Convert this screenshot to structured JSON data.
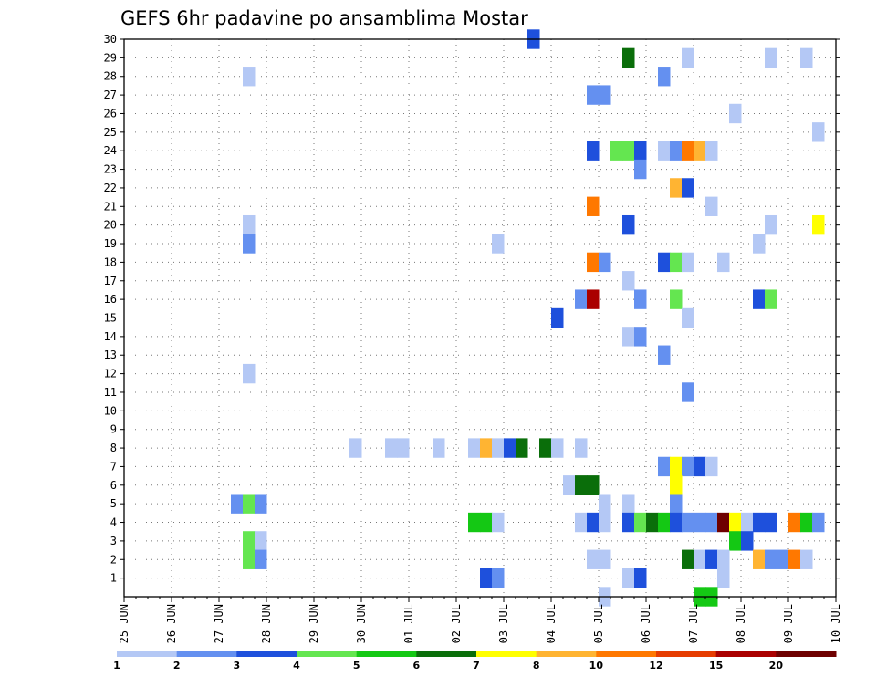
{
  "chart_data": {
    "type": "heatmap",
    "title": "GEFS 6hr padavine po ansamblima Mostar",
    "xlabel": "",
    "ylabel": "",
    "x_ticks": [
      "25 JUN",
      "26 JUN",
      "27 JUN",
      "28 JUN",
      "29 JUN",
      "30 JUN",
      "01 JUL",
      "02 JUL",
      "03 JUL",
      "04 JUL",
      "05 JUL",
      "06 JUL",
      "07 JUL",
      "08 JUL",
      "09 JUL",
      "10 JUL"
    ],
    "xlim_days": [
      0,
      15
    ],
    "y_ticks": [
      1,
      2,
      3,
      4,
      5,
      6,
      7,
      8,
      9,
      10,
      11,
      12,
      13,
      14,
      15,
      16,
      17,
      18,
      19,
      20,
      21,
      22,
      23,
      24,
      25,
      26,
      27,
      28,
      29,
      30
    ],
    "ylim": [
      0,
      30
    ],
    "grid": true,
    "colorbar": {
      "labels": [
        "1",
        "2",
        "3",
        "4",
        "5",
        "6",
        "7",
        "8",
        "10",
        "12",
        "15",
        "20"
      ],
      "colors": [
        "#b4c8f5",
        "#6490f0",
        "#1e50dc",
        "#64e650",
        "#14c814",
        "#0a6e0a",
        "#ffff00",
        "#ffb432",
        "#ff7800",
        "#e63c00",
        "#aa0000",
        "#6e0000"
      ]
    },
    "cell_width_days": 0.25,
    "cells": [
      {
        "day": 8.5,
        "member": 30,
        "level": 3
      },
      {
        "day": 10.5,
        "member": 29,
        "level": 6
      },
      {
        "day": 11.75,
        "member": 29,
        "level": 1
      },
      {
        "day": 13.5,
        "member": 29,
        "level": 1
      },
      {
        "day": 14.25,
        "member": 29,
        "level": 1
      },
      {
        "day": 2.5,
        "member": 28,
        "level": 1
      },
      {
        "day": 11.25,
        "member": 28,
        "level": 2
      },
      {
        "day": 9.75,
        "member": 27,
        "level": 2
      },
      {
        "day": 10.0,
        "member": 27,
        "level": 2
      },
      {
        "day": 12.75,
        "member": 26,
        "level": 1
      },
      {
        "day": 14.5,
        "member": 25,
        "level": 1
      },
      {
        "day": 9.75,
        "member": 24,
        "level": 3
      },
      {
        "day": 10.25,
        "member": 24,
        "level": 4
      },
      {
        "day": 10.5,
        "member": 24,
        "level": 4
      },
      {
        "day": 10.75,
        "member": 24,
        "level": 3
      },
      {
        "day": 11.25,
        "member": 24,
        "level": 1
      },
      {
        "day": 11.5,
        "member": 24,
        "level": 2
      },
      {
        "day": 11.75,
        "member": 24,
        "level": 9
      },
      {
        "day": 12.0,
        "member": 24,
        "level": 8
      },
      {
        "day": 12.25,
        "member": 24,
        "level": 1
      },
      {
        "day": 10.75,
        "member": 23,
        "level": 2
      },
      {
        "day": 11.5,
        "member": 22,
        "level": 8
      },
      {
        "day": 11.75,
        "member": 22,
        "level": 3
      },
      {
        "day": 9.75,
        "member": 21,
        "level": 9
      },
      {
        "day": 12.25,
        "member": 21,
        "level": 1
      },
      {
        "day": 2.5,
        "member": 20,
        "level": 1
      },
      {
        "day": 10.5,
        "member": 20,
        "level": 3
      },
      {
        "day": 13.5,
        "member": 20,
        "level": 1
      },
      {
        "day": 14.5,
        "member": 20,
        "level": 7
      },
      {
        "day": 2.5,
        "member": 19,
        "level": 2
      },
      {
        "day": 7.75,
        "member": 19,
        "level": 1
      },
      {
        "day": 13.25,
        "member": 19,
        "level": 1
      },
      {
        "day": 9.75,
        "member": 18,
        "level": 9
      },
      {
        "day": 10.0,
        "member": 18,
        "level": 2
      },
      {
        "day": 11.25,
        "member": 18,
        "level": 3
      },
      {
        "day": 11.5,
        "member": 18,
        "level": 4
      },
      {
        "day": 11.75,
        "member": 18,
        "level": 1
      },
      {
        "day": 12.5,
        "member": 18,
        "level": 1
      },
      {
        "day": 10.5,
        "member": 17,
        "level": 1
      },
      {
        "day": 9.5,
        "member": 16,
        "level": 2
      },
      {
        "day": 9.75,
        "member": 16,
        "level": 11
      },
      {
        "day": 10.75,
        "member": 16,
        "level": 2
      },
      {
        "day": 11.5,
        "member": 16,
        "level": 4
      },
      {
        "day": 13.25,
        "member": 16,
        "level": 3
      },
      {
        "day": 13.5,
        "member": 16,
        "level": 4
      },
      {
        "day": 9.0,
        "member": 15,
        "level": 3
      },
      {
        "day": 11.75,
        "member": 15,
        "level": 1
      },
      {
        "day": 10.5,
        "member": 14,
        "level": 1
      },
      {
        "day": 10.75,
        "member": 14,
        "level": 2
      },
      {
        "day": 11.25,
        "member": 13,
        "level": 2
      },
      {
        "day": 2.5,
        "member": 12,
        "level": 1
      },
      {
        "day": 11.75,
        "member": 11,
        "level": 2
      },
      {
        "day": 4.75,
        "member": 8,
        "level": 1
      },
      {
        "day": 5.5,
        "member": 8,
        "level": 1
      },
      {
        "day": 5.75,
        "member": 8,
        "level": 1
      },
      {
        "day": 6.5,
        "member": 8,
        "level": 1
      },
      {
        "day": 7.25,
        "member": 8,
        "level": 1
      },
      {
        "day": 7.5,
        "member": 8,
        "level": 8
      },
      {
        "day": 7.75,
        "member": 8,
        "level": 1
      },
      {
        "day": 8.0,
        "member": 8,
        "level": 3
      },
      {
        "day": 8.25,
        "member": 8,
        "level": 6
      },
      {
        "day": 8.75,
        "member": 8,
        "level": 6
      },
      {
        "day": 9.0,
        "member": 8,
        "level": 1
      },
      {
        "day": 9.5,
        "member": 8,
        "level": 1
      },
      {
        "day": 11.25,
        "member": 7,
        "level": 2
      },
      {
        "day": 11.5,
        "member": 7,
        "level": 7
      },
      {
        "day": 11.75,
        "member": 7,
        "level": 2
      },
      {
        "day": 12.0,
        "member": 7,
        "level": 3
      },
      {
        "day": 12.25,
        "member": 7,
        "level": 1
      },
      {
        "day": 9.25,
        "member": 6,
        "level": 1
      },
      {
        "day": 9.5,
        "member": 6,
        "level": 6
      },
      {
        "day": 9.75,
        "member": 6,
        "level": 6
      },
      {
        "day": 11.5,
        "member": 6,
        "level": 7
      },
      {
        "day": 2.25,
        "member": 5,
        "level": 2
      },
      {
        "day": 2.5,
        "member": 5,
        "level": 4
      },
      {
        "day": 2.75,
        "member": 5,
        "level": 2
      },
      {
        "day": 10.0,
        "member": 5,
        "level": 1
      },
      {
        "day": 10.5,
        "member": 5,
        "level": 1
      },
      {
        "day": 11.5,
        "member": 5,
        "level": 2
      },
      {
        "day": 7.25,
        "member": 4,
        "level": 5
      },
      {
        "day": 7.5,
        "member": 4,
        "level": 5
      },
      {
        "day": 7.75,
        "member": 4,
        "level": 1
      },
      {
        "day": 9.5,
        "member": 4,
        "level": 1
      },
      {
        "day": 9.75,
        "member": 4,
        "level": 3
      },
      {
        "day": 10.0,
        "member": 4,
        "level": 1
      },
      {
        "day": 10.5,
        "member": 4,
        "level": 3
      },
      {
        "day": 10.75,
        "member": 4,
        "level": 4
      },
      {
        "day": 11.0,
        "member": 4,
        "level": 6
      },
      {
        "day": 11.25,
        "member": 4,
        "level": 5
      },
      {
        "day": 11.5,
        "member": 4,
        "level": 3
      },
      {
        "day": 11.75,
        "member": 4,
        "level": 2
      },
      {
        "day": 12.0,
        "member": 4,
        "level": 2
      },
      {
        "day": 12.25,
        "member": 4,
        "level": 2
      },
      {
        "day": 12.5,
        "member": 4,
        "level": 12
      },
      {
        "day": 12.75,
        "member": 4,
        "level": 7
      },
      {
        "day": 13.0,
        "member": 4,
        "level": 1
      },
      {
        "day": 13.25,
        "member": 4,
        "level": 3
      },
      {
        "day": 13.5,
        "member": 4,
        "level": 3
      },
      {
        "day": 14.0,
        "member": 4,
        "level": 9
      },
      {
        "day": 14.25,
        "member": 4,
        "level": 5
      },
      {
        "day": 14.5,
        "member": 4,
        "level": 2
      },
      {
        "day": 2.5,
        "member": 3,
        "level": 4
      },
      {
        "day": 2.75,
        "member": 3,
        "level": 1
      },
      {
        "day": 12.75,
        "member": 3,
        "level": 5
      },
      {
        "day": 13.0,
        "member": 3,
        "level": 3
      },
      {
        "day": 2.5,
        "member": 2,
        "level": 4
      },
      {
        "day": 2.75,
        "member": 2,
        "level": 2
      },
      {
        "day": 9.75,
        "member": 2,
        "level": 1
      },
      {
        "day": 10.0,
        "member": 2,
        "level": 1
      },
      {
        "day": 11.75,
        "member": 2,
        "level": 6
      },
      {
        "day": 12.0,
        "member": 2,
        "level": 1
      },
      {
        "day": 12.25,
        "member": 2,
        "level": 3
      },
      {
        "day": 12.5,
        "member": 2,
        "level": 1
      },
      {
        "day": 13.25,
        "member": 2,
        "level": 8
      },
      {
        "day": 13.5,
        "member": 2,
        "level": 2
      },
      {
        "day": 13.75,
        "member": 2,
        "level": 2
      },
      {
        "day": 14.0,
        "member": 2,
        "level": 9
      },
      {
        "day": 14.25,
        "member": 2,
        "level": 1
      },
      {
        "day": 7.5,
        "member": 1,
        "level": 3
      },
      {
        "day": 7.75,
        "member": 1,
        "level": 2
      },
      {
        "day": 10.5,
        "member": 1,
        "level": 1
      },
      {
        "day": 10.75,
        "member": 1,
        "level": 3
      },
      {
        "day": 12.5,
        "member": 1,
        "level": 1
      },
      {
        "day": 10.0,
        "member": 0,
        "level": 1
      },
      {
        "day": 12.0,
        "member": 0,
        "level": 5
      },
      {
        "day": 12.25,
        "member": 0,
        "level": 5
      }
    ]
  }
}
